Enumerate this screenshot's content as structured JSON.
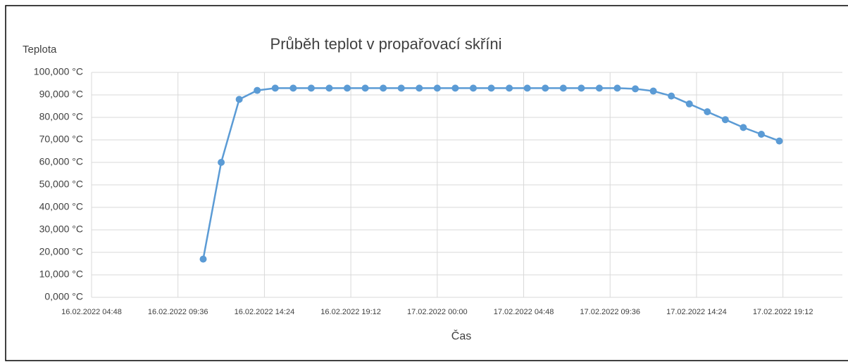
{
  "chart_data": {
    "type": "line",
    "title": "Průběh teplot v propařovací skříni",
    "y_label": "Teplota",
    "x_label": "Čas",
    "x": [
      "2022-02-16T11:00",
      "2022-02-16T12:00",
      "2022-02-16T13:00",
      "2022-02-16T14:00",
      "2022-02-16T15:00",
      "2022-02-16T16:00",
      "2022-02-16T17:00",
      "2022-02-16T18:00",
      "2022-02-16T19:00",
      "2022-02-16T20:00",
      "2022-02-16T21:00",
      "2022-02-16T22:00",
      "2022-02-16T23:00",
      "2022-02-17T00:00",
      "2022-02-17T01:00",
      "2022-02-17T02:00",
      "2022-02-17T03:00",
      "2022-02-17T04:00",
      "2022-02-17T05:00",
      "2022-02-17T06:00",
      "2022-02-17T07:00",
      "2022-02-17T08:00",
      "2022-02-17T09:00",
      "2022-02-17T10:00",
      "2022-02-17T11:00",
      "2022-02-17T12:00",
      "2022-02-17T13:00",
      "2022-02-17T14:00",
      "2022-02-17T15:00",
      "2022-02-17T16:00",
      "2022-02-17T17:00",
      "2022-02-17T18:00",
      "2022-02-17T19:00"
    ],
    "series": [
      {
        "name": "Teplota",
        "color": "#5b9bd5",
        "values": [
          17,
          60,
          88,
          92,
          93,
          93,
          93,
          93,
          93,
          93,
          93,
          93,
          93,
          93,
          93,
          93,
          93,
          93,
          93,
          93,
          93,
          93,
          93,
          93,
          92.7,
          91.7,
          89.5,
          86,
          82.5,
          79,
          75.5,
          72.5,
          69.5
        ]
      }
    ],
    "xlim": [
      "2022-02-16T04:48",
      "2022-02-17T22:30"
    ],
    "xticks": [
      {
        "value": "2022-02-16T04:48",
        "label": "16.02.2022 04:48"
      },
      {
        "value": "2022-02-16T09:36",
        "label": "16.02.2022 09:36"
      },
      {
        "value": "2022-02-16T14:24",
        "label": "16.02.2022 14:24"
      },
      {
        "value": "2022-02-16T19:12",
        "label": "16.02.2022 19:12"
      },
      {
        "value": "2022-02-17T00:00",
        "label": "17.02.2022 00:00"
      },
      {
        "value": "2022-02-17T04:48",
        "label": "17.02.2022 04:48"
      },
      {
        "value": "2022-02-17T09:36",
        "label": "17.02.2022 09:36"
      },
      {
        "value": "2022-02-17T14:24",
        "label": "17.02.2022 14:24"
      },
      {
        "value": "2022-02-17T19:12",
        "label": "17.02.2022 19:12"
      }
    ],
    "ylim": [
      0,
      100
    ],
    "yticks": [
      {
        "value": 0,
        "label": "0,000 °C"
      },
      {
        "value": 10,
        "label": "10,000 °C"
      },
      {
        "value": 20,
        "label": "20,000 °C"
      },
      {
        "value": 30,
        "label": "30,000 °C"
      },
      {
        "value": 40,
        "label": "40,000 °C"
      },
      {
        "value": 50,
        "label": "50,000 °C"
      },
      {
        "value": 60,
        "label": "60,000 °C"
      },
      {
        "value": 70,
        "label": "70,000 °C"
      },
      {
        "value": 80,
        "label": "80,000 °C"
      },
      {
        "value": 90,
        "label": "90,000 °C"
      },
      {
        "value": 100,
        "label": "100,000 °C"
      }
    ],
    "grid": true
  }
}
